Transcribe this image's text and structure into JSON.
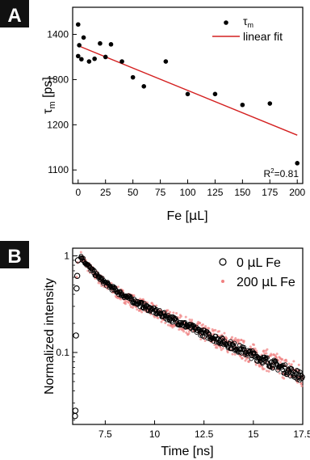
{
  "chart_data": [
    {
      "panel_label": "A",
      "type": "scatter",
      "xlabel_main": "Fe [",
      "xlabel_mu": "μ",
      "xlabel_rest": "L]",
      "ylabel_main": "τ",
      "ylabel_sub": "m",
      "ylabel_rest": " [ps]",
      "xlim": [
        -5,
        205
      ],
      "ylim": [
        1070,
        1460
      ],
      "xticks": [
        0,
        25,
        50,
        75,
        100,
        125,
        150,
        175,
        200
      ],
      "yticks": [
        1100,
        1200,
        1300,
        1400
      ],
      "legend": {
        "placement": "top-right",
        "points_main": "τ",
        "points_sub": "m",
        "fit_label": "linear fit"
      },
      "annotation_main": "R",
      "annotation_sup": "2",
      "annotation_rest": "=0.81",
      "series": [
        {
          "role": "points",
          "color": "#000000",
          "points": [
            [
              0,
              1422
            ],
            [
              0,
              1352
            ],
            [
              1,
              1376
            ],
            [
              3,
              1345
            ],
            [
              5,
              1393
            ],
            [
              10,
              1340
            ],
            [
              15,
              1346
            ],
            [
              20,
              1380
            ],
            [
              25,
              1350
            ],
            [
              30,
              1378
            ],
            [
              40,
              1340
            ],
            [
              50,
              1305
            ],
            [
              60,
              1285
            ],
            [
              80,
              1340
            ],
            [
              100,
              1268
            ],
            [
              125,
              1268
            ],
            [
              150,
              1244
            ],
            [
              175,
              1247
            ],
            [
              200,
              1115
            ]
          ]
        },
        {
          "role": "fit",
          "color": "#d42020",
          "points": [
            [
              0,
              1375
            ],
            [
              200,
              1177
            ]
          ]
        }
      ]
    },
    {
      "panel_label": "B",
      "type": "scatter",
      "xlabel": "Time [ns]",
      "ylabel": "Normalized intensity",
      "xlim": [
        5.85,
        17.5
      ],
      "ylim": [
        0.018,
        1.2
      ],
      "yscale": "log",
      "xticks": [
        7.5,
        10,
        12.5,
        15,
        17.5
      ],
      "yticks": [
        0.1,
        1
      ],
      "ytick_labels": [
        "0.1",
        "1"
      ],
      "legend": {
        "placement": "top-right",
        "entries": [
          {
            "pre": "0 ",
            "mu": "μ",
            "post": "L Fe",
            "marker": "open-circle",
            "color": "#000000"
          },
          {
            "pre": "200 ",
            "mu": "μ",
            "post": "L Fe",
            "marker": "dot",
            "color": "#f08080"
          }
        ]
      },
      "series": [
        {
          "name": "0 μL Fe",
          "color": "#000000",
          "peak_time": 6.25,
          "rise_points": [
            [
              5.97,
              0.022
            ],
            [
              5.99,
              0.025
            ],
            [
              6.02,
              0.15
            ],
            [
              6.05,
              0.46
            ],
            [
              6.08,
              0.62
            ],
            [
              6.12,
              0.9
            ]
          ],
          "decay_model": {
            "a1": 0.42,
            "tau1": 0.75,
            "a2": 0.58,
            "tau2": 4.8
          },
          "t_end": 17.5
        },
        {
          "name": "200 μL Fe",
          "color": "#f08080",
          "peak_time": 6.25,
          "rise_points": [
            [
              6.05,
              0.6
            ],
            [
              6.1,
              0.85
            ]
          ],
          "decay_model": {
            "a1": 0.44,
            "tau1": 0.72,
            "a2": 0.56,
            "tau2": 4.95
          },
          "t_end": 17.5
        }
      ]
    }
  ]
}
